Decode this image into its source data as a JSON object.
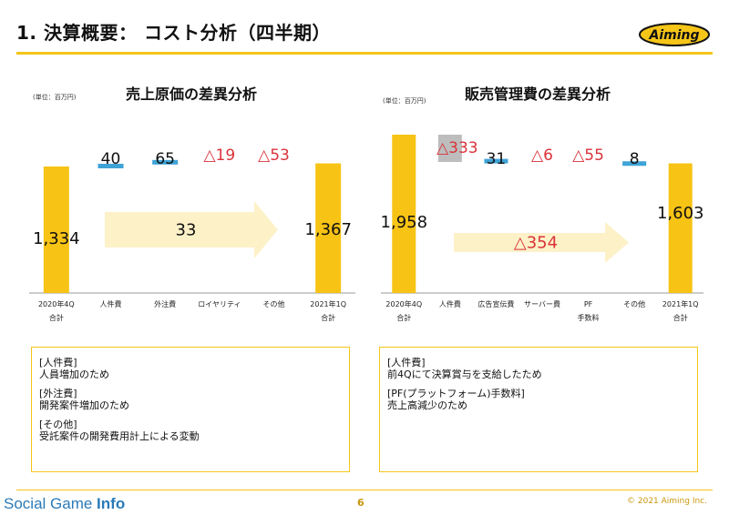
{
  "header": {
    "title": "1. 決算概要： コスト分析（四半期）",
    "logo_text": "Aiming"
  },
  "colors": {
    "bar": "#f7c315",
    "arrow": "#fdf1c8",
    "marker": "#3fa3d6",
    "negative": "#d9333a",
    "gray": "#bdbdbd",
    "accent": "#f5c518"
  },
  "chart_data": [
    {
      "type": "bar",
      "title": "売上原価の差異分析",
      "unit": "(単位：百万円)",
      "categories": [
        "2020年4Q\n合計",
        "人件費",
        "外注費",
        "ロイヤリティ",
        "その他",
        "2021年1Q\n合計"
      ],
      "values": [
        1334,
        40,
        65,
        -19,
        -53,
        1367
      ],
      "value_labels": [
        "1,334",
        "40",
        "65",
        "△19",
        "△53",
        "1,367"
      ],
      "net_change_label": "33",
      "net_change": 33
    },
    {
      "type": "bar",
      "title": "販売管理費の差異分析",
      "unit": "(単位：百万円)",
      "categories": [
        "2020年4Q\n合計",
        "人件費",
        "広告宣伝費",
        "サーバー費",
        "PF\n手数料",
        "その他",
        "2021年1Q\n合計"
      ],
      "values": [
        1958,
        -333,
        31,
        -6,
        -55,
        8,
        1603
      ],
      "value_labels": [
        "1,958",
        "△333",
        "31",
        "△6",
        "△55",
        "8",
        "1,603"
      ],
      "net_change_label": "△354",
      "net_change": -354
    }
  ],
  "notes_left": {
    "items": [
      {
        "heading": "[人件費]",
        "text": "人員増加のため"
      },
      {
        "heading": "[外注費]",
        "text": "開発案件増加のため"
      },
      {
        "heading": "[その他]",
        "text": "受託案件の開発費用計上による変動"
      }
    ]
  },
  "notes_right": {
    "items": [
      {
        "heading": "[人件費]",
        "text": "前4Qにて決算賞与を支給したため"
      },
      {
        "heading": "[PF(プラットフォーム)手数料]",
        "text": "売上高減少のため"
      }
    ]
  },
  "footer": {
    "brand_a": "Social Game ",
    "brand_b": "Info",
    "page_number": "6",
    "copyright": "© 2021 Aiming Inc."
  }
}
